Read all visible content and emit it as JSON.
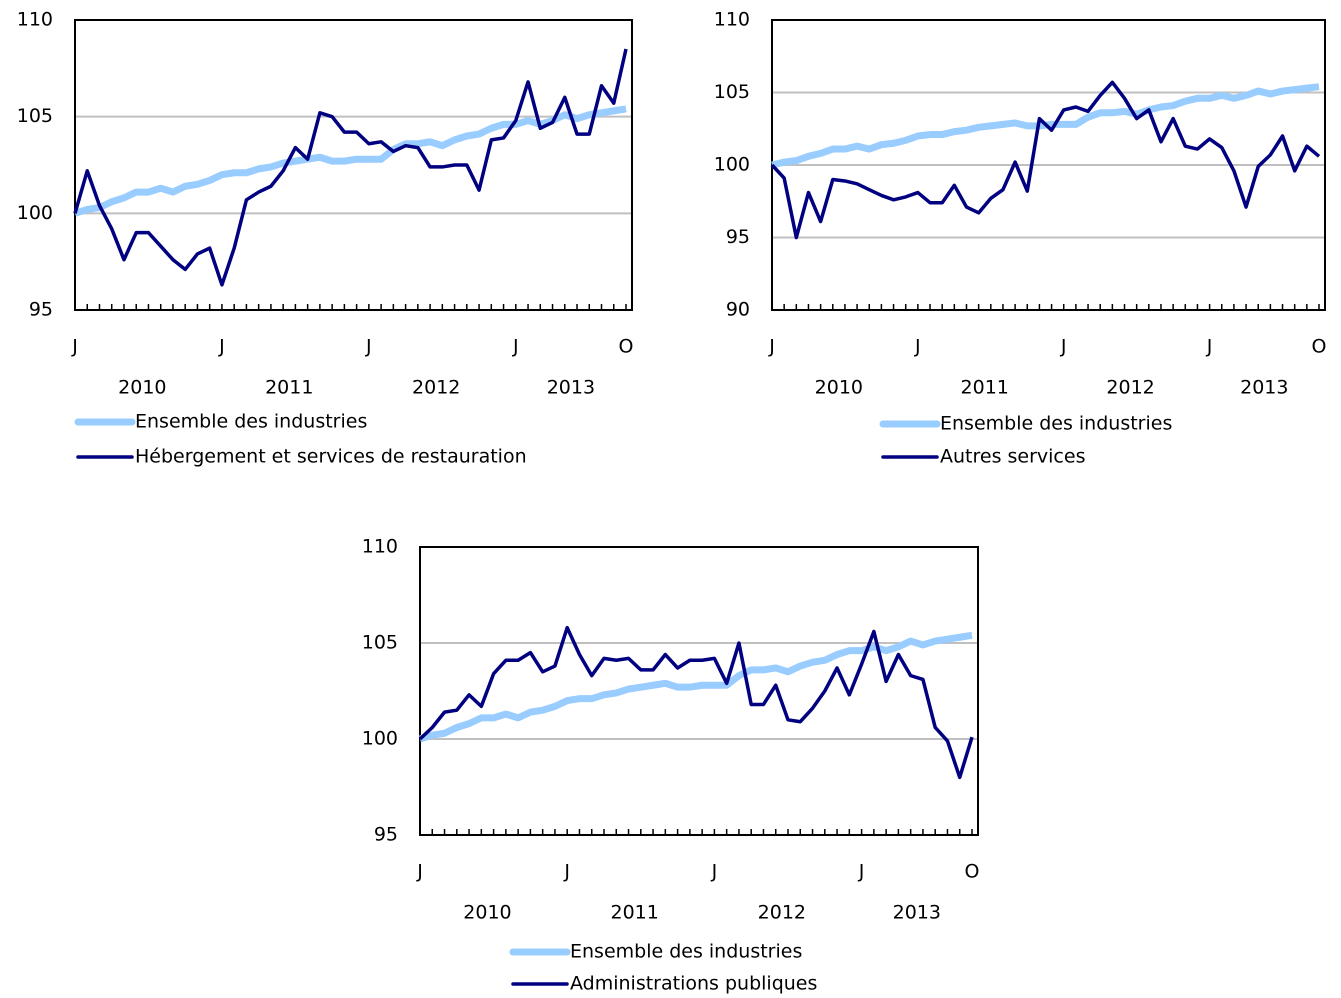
{
  "chart_data": [
    {
      "type": "line",
      "categories": [
        "J",
        null,
        null,
        null,
        null,
        null,
        null,
        null,
        null,
        null,
        null,
        null,
        "J",
        null,
        null,
        null,
        null,
        null,
        null,
        null,
        null,
        null,
        null,
        null,
        "J",
        null,
        null,
        null,
        null,
        null,
        null,
        null,
        null,
        null,
        null,
        null,
        "J",
        null,
        null,
        null,
        null,
        null,
        null,
        null,
        null,
        "O"
      ],
      "year_labels": [
        "2010",
        "2011",
        "2012",
        "2013"
      ],
      "ylim": [
        95,
        110
      ],
      "yticks": [
        95,
        100,
        105,
        110
      ],
      "grid": true,
      "series": [
        {
          "name": "Ensemble des industries",
          "color": "#99ccff",
          "values": [
            100,
            100.2,
            100.3,
            100.6,
            100.8,
            101.1,
            101.1,
            101.3,
            101.1,
            101.4,
            101.5,
            101.7,
            102.0,
            102.1,
            102.1,
            102.3,
            102.4,
            102.6,
            102.7,
            102.8,
            102.9,
            102.7,
            102.7,
            102.8,
            102.8,
            102.8,
            103.3,
            103.6,
            103.6,
            103.7,
            103.5,
            103.8,
            104.0,
            104.1,
            104.4,
            104.6,
            104.6,
            104.8,
            104.6,
            104.8,
            105.1,
            104.9,
            105.1,
            105.2,
            105.3,
            105.4
          ]
        },
        {
          "name": "Hébergement et services de restauration",
          "color": "#000080",
          "values": [
            100,
            102.2,
            100.4,
            99.2,
            97.6,
            99.0,
            99.0,
            98.3,
            97.6,
            97.1,
            97.9,
            98.2,
            96.3,
            98.2,
            100.7,
            101.1,
            101.4,
            102.2,
            103.4,
            102.8,
            105.2,
            105.0,
            104.2,
            104.2,
            103.6,
            103.7,
            103.2,
            103.5,
            103.4,
            102.4,
            102.4,
            102.5,
            102.5,
            101.2,
            103.8,
            103.9,
            104.8,
            106.8,
            104.4,
            104.7,
            106.0,
            104.1,
            104.1,
            106.6,
            105.7,
            108.5
          ]
        }
      ]
    },
    {
      "type": "line",
      "categories": [
        "J",
        null,
        null,
        null,
        null,
        null,
        null,
        null,
        null,
        null,
        null,
        null,
        "J",
        null,
        null,
        null,
        null,
        null,
        null,
        null,
        null,
        null,
        null,
        null,
        "J",
        null,
        null,
        null,
        null,
        null,
        null,
        null,
        null,
        null,
        null,
        null,
        "J",
        null,
        null,
        null,
        null,
        null,
        null,
        null,
        null,
        "O"
      ],
      "year_labels": [
        "2010",
        "2011",
        "2012",
        "2013"
      ],
      "ylim": [
        90,
        110
      ],
      "yticks": [
        90,
        95,
        100,
        105,
        110
      ],
      "grid": true,
      "series": [
        {
          "name": "Ensemble des industries",
          "color": "#99ccff",
          "values": [
            100,
            100.2,
            100.3,
            100.6,
            100.8,
            101.1,
            101.1,
            101.3,
            101.1,
            101.4,
            101.5,
            101.7,
            102.0,
            102.1,
            102.1,
            102.3,
            102.4,
            102.6,
            102.7,
            102.8,
            102.9,
            102.7,
            102.7,
            102.8,
            102.8,
            102.8,
            103.3,
            103.6,
            103.6,
            103.7,
            103.5,
            103.8,
            104.0,
            104.1,
            104.4,
            104.6,
            104.6,
            104.8,
            104.6,
            104.8,
            105.1,
            104.9,
            105.1,
            105.2,
            105.3,
            105.4
          ]
        },
        {
          "name": "Autres services",
          "color": "#000080",
          "values": [
            100,
            99.1,
            95.0,
            98.1,
            96.1,
            99.0,
            98.9,
            98.7,
            98.3,
            97.9,
            97.6,
            97.8,
            98.1,
            97.4,
            97.4,
            98.6,
            97.1,
            96.7,
            97.7,
            98.3,
            100.2,
            98.2,
            103.2,
            102.4,
            103.8,
            104.0,
            103.7,
            104.8,
            105.7,
            104.6,
            103.2,
            103.8,
            101.6,
            103.2,
            101.3,
            101.1,
            101.8,
            101.2,
            99.6,
            97.1,
            99.9,
            100.7,
            102.0,
            99.6,
            101.3,
            100.6
          ]
        }
      ]
    },
    {
      "type": "line",
      "categories": [
        "J",
        null,
        null,
        null,
        null,
        null,
        null,
        null,
        null,
        null,
        null,
        null,
        "J",
        null,
        null,
        null,
        null,
        null,
        null,
        null,
        null,
        null,
        null,
        null,
        "J",
        null,
        null,
        null,
        null,
        null,
        null,
        null,
        null,
        null,
        null,
        null,
        "J",
        null,
        null,
        null,
        null,
        null,
        null,
        null,
        null,
        "O"
      ],
      "year_labels": [
        "2010",
        "2011",
        "2012",
        "2013"
      ],
      "ylim": [
        95,
        110
      ],
      "yticks": [
        95,
        100,
        105,
        110
      ],
      "grid": true,
      "series": [
        {
          "name": "Ensemble des industries",
          "color": "#99ccff",
          "values": [
            100,
            100.2,
            100.3,
            100.6,
            100.8,
            101.1,
            101.1,
            101.3,
            101.1,
            101.4,
            101.5,
            101.7,
            102.0,
            102.1,
            102.1,
            102.3,
            102.4,
            102.6,
            102.7,
            102.8,
            102.9,
            102.7,
            102.7,
            102.8,
            102.8,
            102.8,
            103.3,
            103.6,
            103.6,
            103.7,
            103.5,
            103.8,
            104.0,
            104.1,
            104.4,
            104.6,
            104.6,
            104.8,
            104.6,
            104.8,
            105.1,
            104.9,
            105.1,
            105.2,
            105.3,
            105.4
          ]
        },
        {
          "name": "Administrations publiques",
          "color": "#000080",
          "values": [
            100,
            100.6,
            101.4,
            101.5,
            102.3,
            101.7,
            103.4,
            104.1,
            104.1,
            104.5,
            103.5,
            103.8,
            105.8,
            104.4,
            103.3,
            104.2,
            104.1,
            104.2,
            103.6,
            103.6,
            104.4,
            103.7,
            104.1,
            104.1,
            104.2,
            102.9,
            105.0,
            101.8,
            101.8,
            102.8,
            101.0,
            100.9,
            101.6,
            102.5,
            103.7,
            102.3,
            103.9,
            105.6,
            103.0,
            104.4,
            103.3,
            103.1,
            100.6,
            99.9,
            98.0,
            100.1
          ]
        }
      ]
    }
  ]
}
